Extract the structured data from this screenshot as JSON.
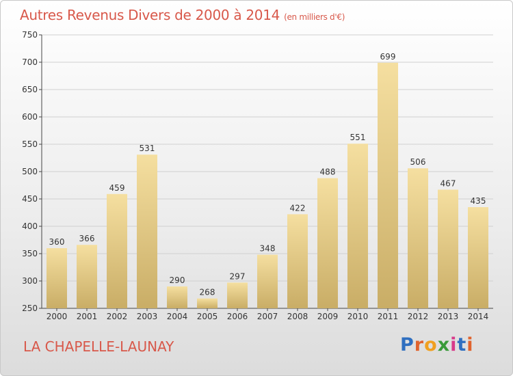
{
  "chart_data": {
    "type": "bar",
    "title": "Autres Revenus Divers de 2000 à 2014",
    "subtitle": "(en milliers d'€)",
    "categories": [
      "2000",
      "2001",
      "2002",
      "2003",
      "2004",
      "2005",
      "2006",
      "2007",
      "2008",
      "2009",
      "2010",
      "2011",
      "2012",
      "2013",
      "2014"
    ],
    "values": [
      360,
      366,
      459,
      531,
      290,
      268,
      297,
      348,
      422,
      488,
      551,
      699,
      506,
      467,
      435
    ],
    "ylim": [
      250,
      750
    ],
    "yticks": [
      250,
      300,
      350,
      400,
      450,
      500,
      550,
      600,
      650,
      700,
      750
    ],
    "grid": true,
    "colors": {
      "bar_top": "#f5dfa0",
      "bar_bottom": "#c9ad66",
      "grid": "#d0d0d0",
      "title": "#d8584a"
    }
  },
  "footer": {
    "city": "LA CHAPELLE-LAUNAY",
    "logo_text": "Proxiti",
    "logo_colors": [
      "#2f6fc0",
      "#e0632e",
      "#f0a020",
      "#3a9a3a",
      "#d83a8a",
      "#2f6fc0",
      "#e0632e"
    ]
  }
}
